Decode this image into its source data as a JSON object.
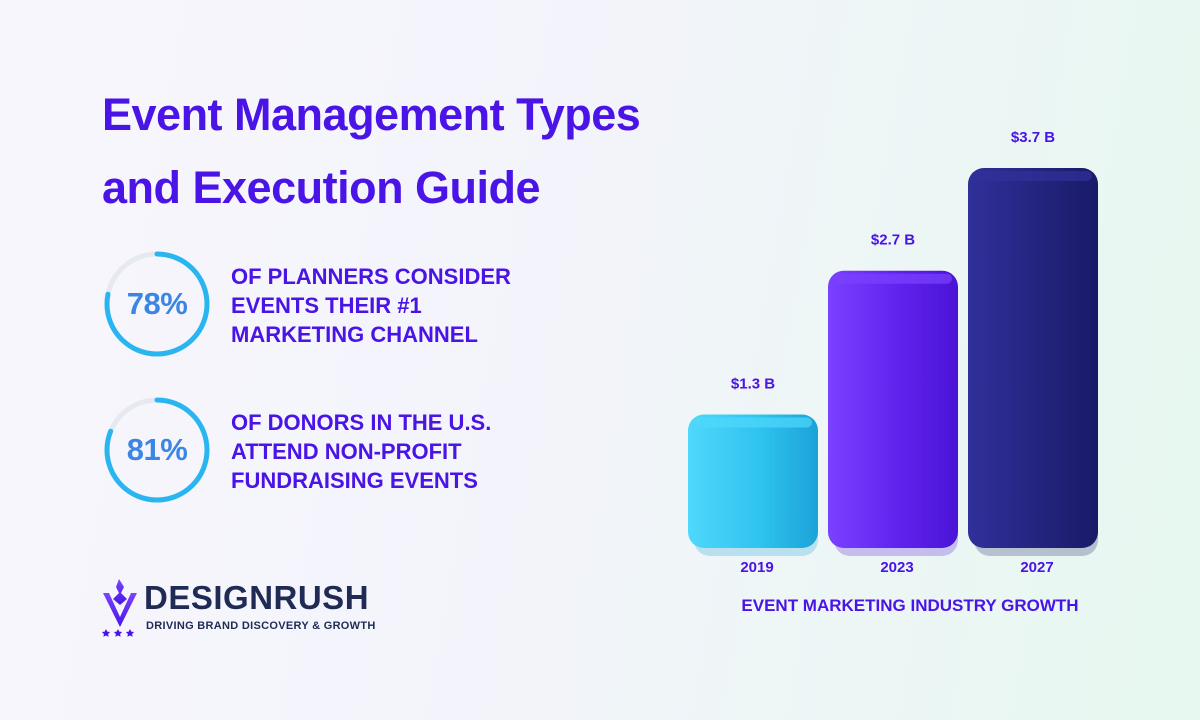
{
  "title_lines": [
    "Event Management Types",
    "and Execution Guide"
  ],
  "stats": [
    {
      "percent": "78%",
      "value": 78,
      "lines": [
        "OF PLANNERS CONSIDER",
        "EVENTS THEIR #1",
        "MARKETING CHANNEL"
      ]
    },
    {
      "percent": "81%",
      "value": 81,
      "lines": [
        "OF DONORS IN THE U.S.",
        "ATTEND NON-PROFIT",
        "FUNDRAISING EVENTS"
      ]
    }
  ],
  "logo": {
    "name": "DESIGNRUSH",
    "tagline": "DRIVING BRAND DISCOVERY & GROWTH"
  },
  "colors": {
    "brand": "#4a14e6",
    "ring": "#29b6f0",
    "ring_track": "#e6e9f2",
    "logo_text": "#1f2b55"
  },
  "chart_data": {
    "type": "bar",
    "title": "EVENT MARKETING INDUSTRY GROWTH",
    "categories": [
      "2019",
      "2023",
      "2027"
    ],
    "values": [
      1.3,
      2.7,
      3.7
    ],
    "data_labels": [
      "$1.3 B",
      "$2.7 B",
      "$3.7 B"
    ],
    "unit": "$ B",
    "ylim": [
      0,
      3.7
    ],
    "bar_colors": [
      {
        "light": "#4fd8fb",
        "mid": "#2fc3ef",
        "dark": "#1ba3d8"
      },
      {
        "light": "#7a41ff",
        "mid": "#5f22ee",
        "dark": "#4a14d6"
      },
      {
        "light": "#30309a",
        "mid": "#23247e",
        "dark": "#1a1a68"
      }
    ]
  }
}
